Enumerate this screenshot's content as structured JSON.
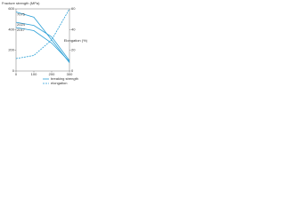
{
  "chart_data": {
    "type": "line",
    "y_label": "Fracture strength (MPa)",
    "y2_label": "Elongation (%)",
    "x": [
      0,
      100,
      200,
      300
    ],
    "xlim": [
      0,
      300
    ],
    "xticks": [
      0,
      100,
      200,
      300
    ],
    "ylim": [
      0,
      600
    ],
    "yticks": [
      0,
      200,
      400,
      600
    ],
    "y2lim": [
      0,
      60
    ],
    "y2ticks": [
      0,
      20,
      40,
      60
    ],
    "legend": [
      "breaking strength",
      "elongation"
    ],
    "series": [
      {
        "name": "7075",
        "color": "#2a9fd6",
        "values": [
          570,
          520,
          300,
          80
        ]
      },
      {
        "name": "2024",
        "color": "#2a9fd6",
        "values": [
          470,
          440,
          330,
          100
        ]
      },
      {
        "name": "2017",
        "color": "#2a9fd6",
        "values": [
          420,
          390,
          270,
          90
        ]
      },
      {
        "color": "#2a9fd6",
        "axis": "y2",
        "dash": true,
        "values": [
          12,
          15,
          30,
          60
        ]
      }
    ]
  }
}
